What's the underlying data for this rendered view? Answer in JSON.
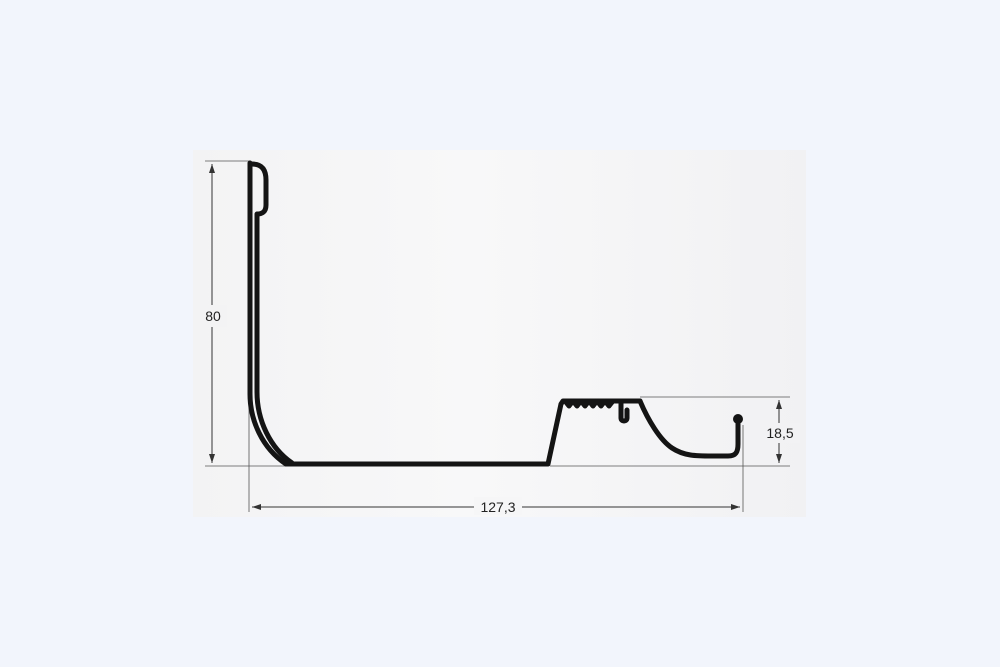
{
  "diagram": {
    "dimensions": {
      "height": "80",
      "width": "127,3",
      "step_height": "18,5"
    },
    "colors": {
      "background": "#f2f5fc",
      "panel": "#f6f6f7",
      "profile": "#141414",
      "dimension_line": "#333333"
    }
  }
}
